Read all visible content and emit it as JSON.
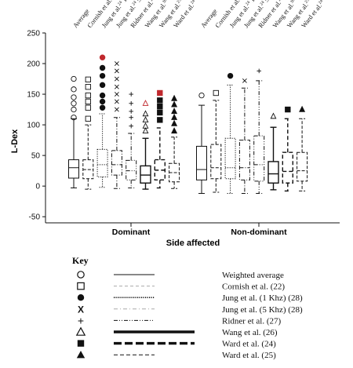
{
  "chart_data": {
    "type": "box",
    "ylabel": "L-Dex",
    "xlabel": "Side affected",
    "ylim": [
      -60,
      250
    ],
    "yticks": [
      -50,
      0,
      50,
      100,
      150,
      200,
      250
    ],
    "groups": [
      {
        "name": "Dominant",
        "studies": [
          {
            "label": "Average",
            "sup": "",
            "whisker_low": -3,
            "q1": 13,
            "median": 30,
            "q3": 43,
            "whisker_high": 110,
            "outliers": [
              112,
              125,
              135,
              145,
              158,
              175
            ],
            "marker": "circle-open",
            "line": "solid"
          },
          {
            "label": "Cornish et al.",
            "sup": "32",
            "whisker_low": -5,
            "q1": 12,
            "median": 27,
            "q3": 43,
            "whisker_high": 100,
            "outliers": [
              110,
              128,
              138,
              148,
              162,
              174
            ],
            "marker": "square-open",
            "line": "dashed"
          },
          {
            "label": "Jung et al.",
            "sup": "24",
            "suffix": " 1 kHz",
            "whisker_low": -2,
            "q1": 15,
            "median": 35,
            "q3": 60,
            "whisker_high": 118,
            "outliers": [
              128,
              138,
              148,
              165,
              180,
              193,
              210
            ],
            "marker": "circle-filled",
            "line": "dotted"
          },
          {
            "label": "Jung et al.",
            "sup": "24",
            "suffix": " 5 kHz",
            "whisker_low": -4,
            "q1": 18,
            "median": 35,
            "q3": 58,
            "whisker_high": 112,
            "outliers": [
              125,
              138,
              150,
              162,
              175,
              188,
              200
            ],
            "marker": "x",
            "line": "dashdot"
          },
          {
            "label": "Ridner et al.",
            "sup": "26",
            "whisker_low": -3,
            "q1": 10,
            "median": 25,
            "q3": 42,
            "whisker_high": 86,
            "outliers": [
              98,
              112,
              122,
              135,
              150
            ],
            "marker": "plus",
            "line": "dashdotdot"
          },
          {
            "label": "Wang et al.",
            "sup": "36",
            "whisker_low": -5,
            "q1": 5,
            "median": 18,
            "q3": 33,
            "whisker_high": 78,
            "outliers": [
              90,
              98,
              108,
              118,
              135
            ],
            "marker": "triangle-open",
            "line": "thick-solid"
          },
          {
            "label": "Wang et al.",
            "sup": "25",
            "whisker_low": -3,
            "q1": 10,
            "median": 26,
            "q3": 43,
            "whisker_high": 95,
            "outliers": [
              108,
              120,
              130,
              140,
              152
            ],
            "marker": "square-filled",
            "line": "thick-dash"
          },
          {
            "label": "Ward et al.",
            "sup": "24",
            "whisker_low": -4,
            "q1": 7,
            "median": 22,
            "q3": 37,
            "whisker_high": 80,
            "outliers": [
              90,
              102,
              112,
              122,
              133,
              143
            ],
            "marker": "triangle-filled",
            "line": "dashed"
          }
        ]
      },
      {
        "name": "Non-dominant",
        "studies": [
          {
            "label": "Average",
            "sup": "",
            "whisker_low": -12,
            "q1": 10,
            "median": 27,
            "q3": 65,
            "whisker_high": 132,
            "outliers": [
              148
            ],
            "marker": "circle-open",
            "line": "solid"
          },
          {
            "label": "Cornish et al.",
            "sup": "32",
            "whisker_low": -10,
            "q1": 12,
            "median": 30,
            "q3": 68,
            "whisker_high": 140,
            "outliers": [
              152
            ],
            "marker": "square-open",
            "line": "dashed"
          },
          {
            "label": "Jung et al.",
            "sup": "24",
            "suffix": " 1 kHz",
            "whisker_low": -12,
            "q1": 12,
            "median": 30,
            "q3": 78,
            "whisker_high": 165,
            "outliers": [
              180
            ],
            "marker": "circle-filled",
            "line": "dotted"
          },
          {
            "label": "Jung et al.",
            "sup": "24",
            "suffix": " 5 kHz",
            "whisker_low": -12,
            "q1": 10,
            "median": 30,
            "q3": 75,
            "whisker_high": 160,
            "outliers": [
              172
            ],
            "marker": "x",
            "line": "dashdot"
          },
          {
            "label": "Ridner et al.",
            "sup": "26",
            "whisker_low": -12,
            "q1": 8,
            "median": 35,
            "q3": 82,
            "whisker_high": 172,
            "outliers": [
              188
            ],
            "marker": "plus",
            "line": "dashdotdot"
          },
          {
            "label": "Wang et al.",
            "sup": "36",
            "whisker_low": -6,
            "q1": 5,
            "median": 20,
            "q3": 40,
            "whisker_high": 96,
            "outliers": [
              114
            ],
            "marker": "triangle-open",
            "line": "thick-solid"
          },
          {
            "label": "Wang et al.",
            "sup": "25",
            "whisker_low": -8,
            "q1": 5,
            "median": 24,
            "q3": 55,
            "whisker_high": 110,
            "outliers": [
              125
            ],
            "marker": "square-filled",
            "line": "thick-dash"
          },
          {
            "label": "Ward et al.",
            "sup": "24",
            "whisker_low": -8,
            "q1": 8,
            "median": 25,
            "q3": 55,
            "whisker_high": 110,
            "outliers": [
              125
            ],
            "marker": "triangle-filled",
            "line": "dashed"
          }
        ]
      }
    ],
    "red_outlier_markers": [
      "Dominant|2",
      "Dominant|5",
      "Dominant|6"
    ],
    "colors": {
      "main": "#111111",
      "grey_line": "#aaaaaa",
      "highlight": "#c0282d"
    }
  },
  "key": {
    "title": "Key",
    "items": [
      {
        "marker": "circle-open",
        "line": "solid",
        "label": "Weighted average"
      },
      {
        "marker": "square-open",
        "line": "dashed-grey",
        "label": "Cornish et al. (22)"
      },
      {
        "marker": "circle-filled",
        "line": "dotted",
        "label": "Jung et al. (1 Khz) (28)"
      },
      {
        "marker": "X",
        "line": "dashdot-grey",
        "label": "Jung et al. (5 Khz) (28)"
      },
      {
        "marker": "+",
        "line": "dashdotdot",
        "label": "Ridner et al. (27)"
      },
      {
        "marker": "triangle-open",
        "line": "thick-solid",
        "label": "Wang et al. (26)"
      },
      {
        "marker": "square-filled",
        "line": "thick-dash",
        "label": "Ward et al. (24)"
      },
      {
        "marker": "triangle-filled",
        "line": "dashed",
        "label": "Ward et al. (25)"
      }
    ]
  }
}
